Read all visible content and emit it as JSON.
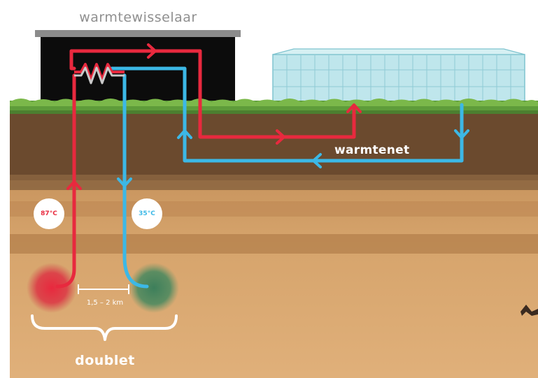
{
  "labels": {
    "heat_exchanger": "warmtewisselaar",
    "heat_network": "warmtenet",
    "hot_temp": "87°C",
    "cold_temp": "35°C",
    "distance": "1,5 – 2 km",
    "doublet": "doublet"
  },
  "colors": {
    "hot_flow": "#e8293e",
    "cold_flow": "#3cb8e6",
    "building": "#0c0c0c",
    "roof": "#8b8b8b",
    "grass": "#5e9c3a",
    "topsoil": "#6b4a2e",
    "sand": "#d8a56c",
    "greenhouse": "#bfe6ec",
    "hot_well": "#dd3040",
    "cold_well": "#4e8a60"
  },
  "icons": [
    "heat-exchanger-coil-icon",
    "greenhouse-icon",
    "building-icon",
    "hot-well-icon",
    "cold-well-icon",
    "brace-icon"
  ]
}
